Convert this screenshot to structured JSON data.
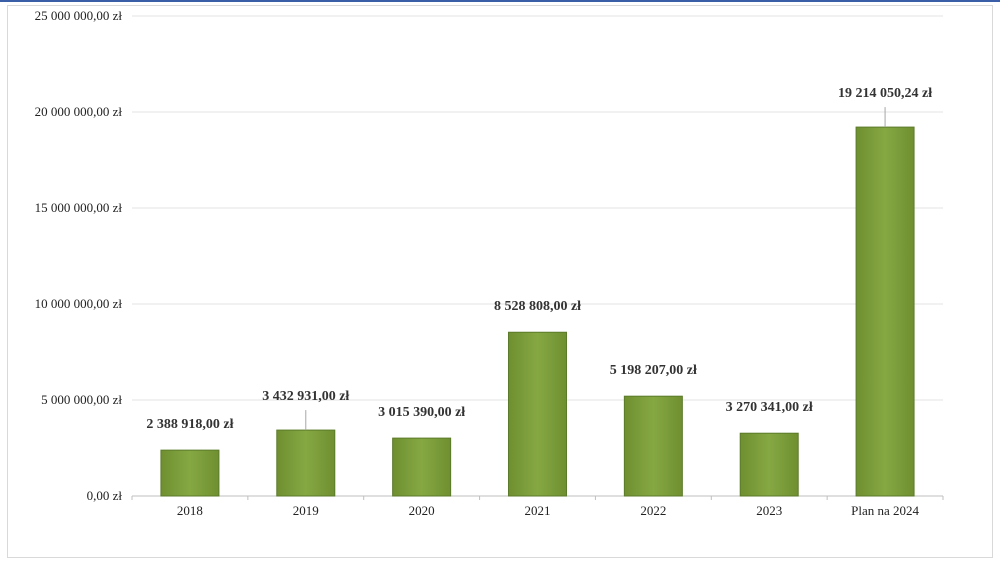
{
  "chart_data": {
    "type": "bar",
    "categories": [
      "2018",
      "2019",
      "2020",
      "2021",
      "2022",
      "2023",
      "Plan na 2024"
    ],
    "values": [
      2388918.0,
      3432931.0,
      3015390.0,
      8528808.0,
      5198207.0,
      3270341.0,
      19214050.24
    ],
    "data_labels": [
      "2 388 918,00 zł",
      "3 432 931,00 zł",
      "3 015 390,00 zł",
      "8 528 808,00 zł",
      "5 198 207,00 zł",
      "3 270 341,00 zł",
      "19 214 050,24 zł"
    ],
    "y_ticks": [
      0,
      5000000,
      10000000,
      15000000,
      20000000,
      25000000
    ],
    "y_tick_labels": [
      "0,00 zł",
      "5 000 000,00 zł",
      "10 000 000,00 zł",
      "15 000 000,00 zł",
      "20 000 000,00 zł",
      "25 000 000,00 zł"
    ],
    "ylim": [
      0,
      25000000
    ],
    "grid": true,
    "bar_color": "#7a9a3a",
    "title": "",
    "xlabel": "",
    "ylabel": ""
  }
}
